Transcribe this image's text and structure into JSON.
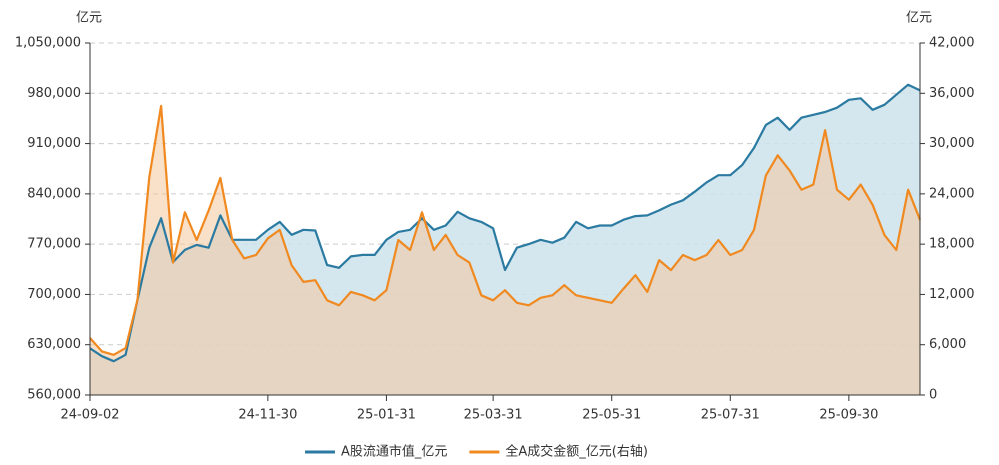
{
  "chart_data": {
    "type": "area",
    "y_label": "亿元",
    "y2_label": "亿元",
    "categories": [
      "24-09-02",
      null,
      null,
      null,
      null,
      null,
      null,
      null,
      null,
      null,
      null,
      null,
      null,
      null,
      null,
      "24-11-30",
      null,
      null,
      null,
      null,
      null,
      null,
      null,
      null,
      null,
      "25-01-31",
      null,
      null,
      null,
      null,
      null,
      null,
      null,
      null,
      "25-03-31",
      null,
      null,
      null,
      null,
      null,
      null,
      null,
      null,
      null,
      "25-05-31",
      null,
      null,
      null,
      null,
      null,
      null,
      null,
      null,
      null,
      "25-07-31",
      null,
      null,
      null,
      null,
      null,
      null,
      null,
      null,
      null,
      "25-09-30",
      null,
      null,
      null,
      null,
      null,
      null
    ],
    "series": [
      {
        "name": "A股流通市值_亿元",
        "color": "#2b7aa1",
        "fill": "#cde3ec",
        "values": [
          625000,
          614000,
          607000,
          616000,
          692000,
          765000,
          806000,
          745000,
          762000,
          769000,
          765000,
          810000,
          776000,
          776000,
          776000,
          790000,
          801000,
          783000,
          790000,
          789000,
          741000,
          737000,
          753000,
          755000,
          755000,
          776000,
          787000,
          790000,
          806000,
          790000,
          796000,
          815000,
          806000,
          801000,
          792000,
          734000,
          765000,
          770000,
          776000,
          772000,
          779000,
          801000,
          792000,
          796000,
          796000,
          804000,
          809000,
          810000,
          817000,
          825000,
          831000,
          843000,
          856000,
          866000,
          866000,
          880000,
          904000,
          936000,
          946000,
          929000,
          946000,
          950000,
          954000,
          960000,
          971000,
          973000,
          957000,
          964000,
          978000,
          992000,
          984000
        ]
      },
      {
        "name": "全A成交金额_亿元(右轴)",
        "color": "#f0891f",
        "fill": "#f3c79c",
        "axis": "y2",
        "values": [
          6800,
          5200,
          4800,
          5600,
          11300,
          26000,
          34500,
          15800,
          21800,
          18500,
          22000,
          25900,
          18500,
          16300,
          16700,
          18700,
          19700,
          15500,
          13500,
          13700,
          11300,
          10700,
          12300,
          11900,
          11300,
          12500,
          18500,
          17300,
          21800,
          17300,
          19100,
          16700,
          15800,
          11900,
          11300,
          12500,
          11000,
          10700,
          11600,
          11900,
          13100,
          11900,
          11600,
          11300,
          11000,
          12700,
          14300,
          12300,
          16100,
          14900,
          16700,
          16100,
          16700,
          18500,
          16700,
          17300,
          19700,
          26200,
          28600,
          26800,
          24500,
          25100,
          31600,
          24500,
          23300,
          25100,
          22700,
          19100,
          17300,
          24500,
          20900
        ]
      }
    ],
    "ylim": [
      560000,
      1050000
    ],
    "yticks": [
      {
        "value": 560000,
        "label": "560,000"
      },
      {
        "value": 630000,
        "label": "630,000"
      },
      {
        "value": 700000,
        "label": "700,000"
      },
      {
        "value": 770000,
        "label": "770,000"
      },
      {
        "value": 840000,
        "label": "840,000"
      },
      {
        "value": 910000,
        "label": "910,000"
      },
      {
        "value": 980000,
        "label": "980,000"
      },
      {
        "value": 1050000,
        "label": "1,050,000"
      }
    ],
    "y2lim": [
      0,
      42000
    ],
    "y2ticks": [
      0,
      {
        "value": 6000,
        "label": "6,000"
      },
      {
        "value": 12000,
        "label": "12,000"
      },
      {
        "value": 18000,
        "label": "18,000"
      },
      {
        "value": 24000,
        "label": "24,000"
      },
      {
        "value": 30000,
        "label": "30,000"
      },
      {
        "value": 36000,
        "label": "36,000"
      },
      {
        "value": 42000,
        "label": "42,000"
      }
    ],
    "grid": true,
    "legend": "bottom"
  }
}
